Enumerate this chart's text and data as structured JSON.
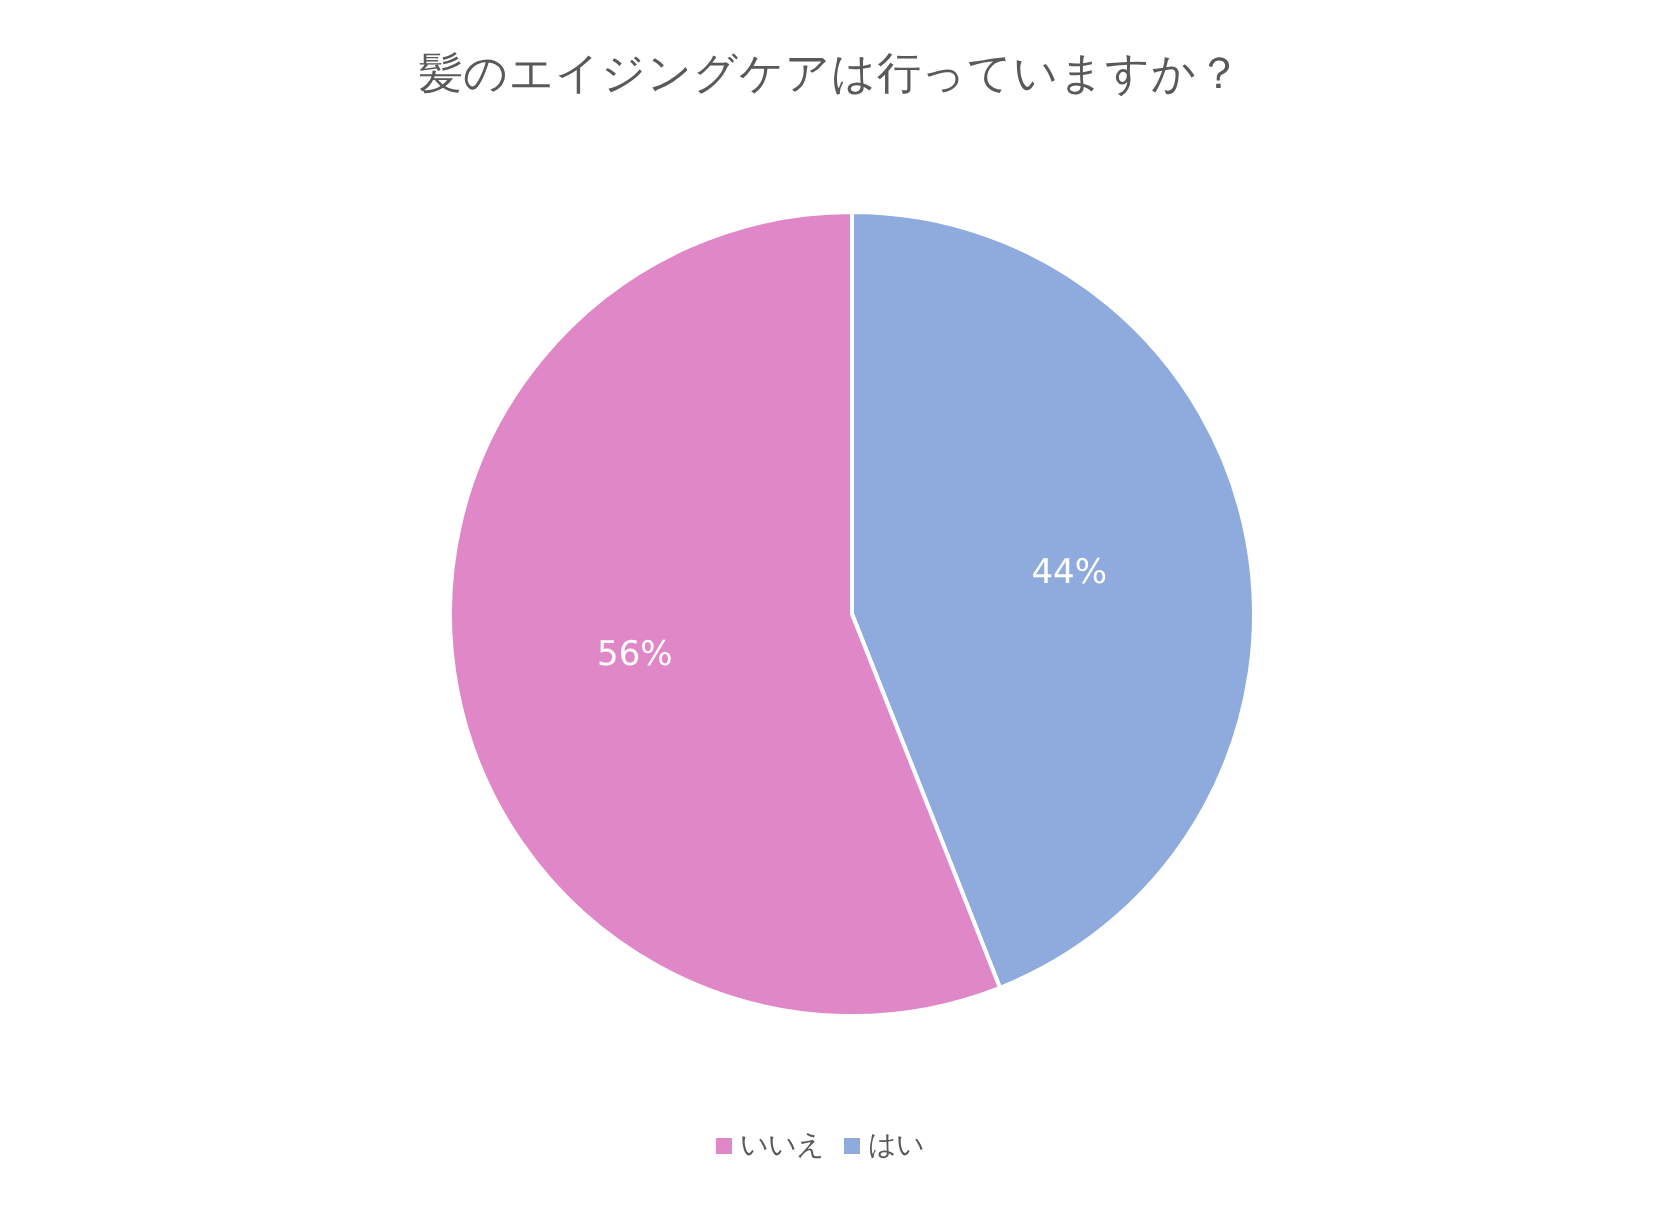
{
  "chart_data": {
    "type": "pie",
    "title": "髪のエイジングケアは行っていますか？",
    "categories": [
      "はい",
      "いいえ"
    ],
    "values": [
      44,
      56
    ],
    "value_labels": [
      "44%",
      "56%"
    ],
    "colors": [
      "#8faadc",
      "#e087c8"
    ],
    "legend": "bottom"
  }
}
